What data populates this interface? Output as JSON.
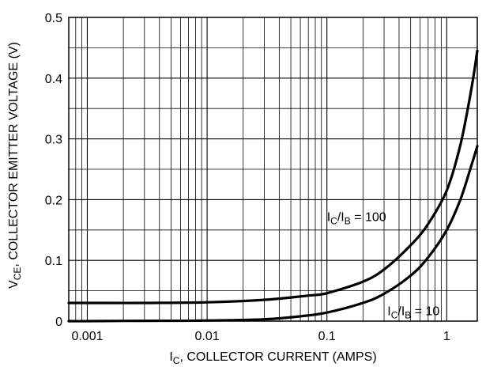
{
  "chart_data": {
    "type": "line",
    "x_scale": "log",
    "y_scale": "linear",
    "grid": true,
    "xlim": [
      0.0007,
      1.8
    ],
    "ylim": [
      0,
      0.5
    ],
    "xlabel": {
      "prefix": "I",
      "sub": "C",
      "rest": ", COLLECTOR CURRENT (AMPS)"
    },
    "ylabel": {
      "prefix": "V",
      "sub": "CE",
      "rest": ", COLLECTOR EMITTER VOLTAGE (V)"
    },
    "x_ticks": [
      {
        "value": 0.001,
        "label": "0.001"
      },
      {
        "value": 0.01,
        "label": "0.01"
      },
      {
        "value": 0.1,
        "label": "0.1"
      },
      {
        "value": 1,
        "label": "1"
      }
    ],
    "y_ticks": [
      {
        "value": 0,
        "label": "0"
      },
      {
        "value": 0.1,
        "label": "0.1"
      },
      {
        "value": 0.2,
        "label": "0.2"
      },
      {
        "value": 0.3,
        "label": "0.3"
      },
      {
        "value": 0.4,
        "label": "0.4"
      },
      {
        "value": 0.5,
        "label": "0.5"
      }
    ],
    "minor_y_gridlines": [
      0.05,
      0.15,
      0.25,
      0.35,
      0.45
    ],
    "series": [
      {
        "name": "IC/IB = 100",
        "label": {
          "p1": "I",
          "s1": "C",
          "mid": "/I",
          "s2": "B",
          "tail": " = 100",
          "x": 0.1,
          "y": 0.165
        },
        "x": [
          0.0007,
          0.001,
          0.003,
          0.01,
          0.03,
          0.07,
          0.1,
          0.2,
          0.3,
          0.5,
          0.7,
          1,
          1.3,
          1.6,
          1.8
        ],
        "y": [
          0.03,
          0.03,
          0.03,
          0.031,
          0.035,
          0.042,
          0.046,
          0.065,
          0.085,
          0.125,
          0.16,
          0.215,
          0.29,
          0.38,
          0.445
        ]
      },
      {
        "name": "IC/IB = 10",
        "label": {
          "p1": "I",
          "s1": "C",
          "mid": "/I",
          "s2": "B",
          "tail": " = 10",
          "x": 0.32,
          "y": 0.01
        },
        "x": [
          0.0007,
          0.001,
          0.003,
          0.01,
          0.03,
          0.06,
          0.1,
          0.2,
          0.3,
          0.5,
          0.7,
          1,
          1.3,
          1.6,
          1.8
        ],
        "y": [
          0.0,
          0.0,
          0.0005,
          0.001,
          0.003,
          0.008,
          0.014,
          0.03,
          0.045,
          0.075,
          0.105,
          0.15,
          0.2,
          0.255,
          0.288
        ]
      }
    ]
  }
}
